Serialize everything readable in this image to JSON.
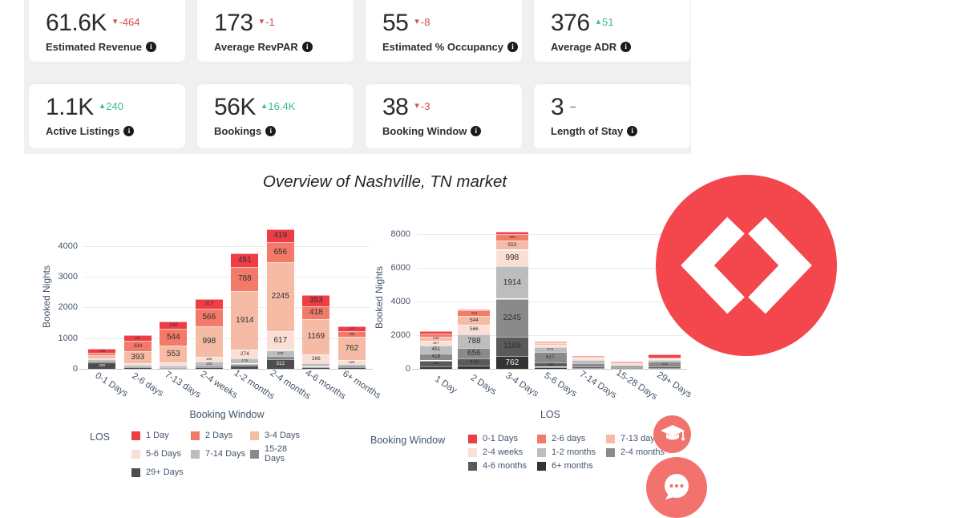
{
  "section_title": "Overview of Nashville, TN market",
  "kpi_cards": [
    {
      "value": "61.6K",
      "delta": "-464",
      "direction": "down",
      "label": "Estimated Revenue"
    },
    {
      "value": "173",
      "delta": "-1",
      "direction": "down",
      "label": "Average RevPAR"
    },
    {
      "value": "55",
      "delta": "-8",
      "direction": "down",
      "label": "Estimated % Occupancy"
    },
    {
      "value": "376",
      "delta": "51",
      "direction": "up",
      "label": "Average ADR"
    },
    {
      "value": "1.1K",
      "delta": "240",
      "direction": "up",
      "label": "Active Listings"
    },
    {
      "value": "56K",
      "delta": "16.4K",
      "direction": "up",
      "label": "Bookings"
    },
    {
      "value": "38",
      "delta": "-3",
      "direction": "down",
      "label": "Booking Window"
    },
    {
      "value": "3",
      "delta": "–",
      "direction": "flat",
      "label": "Length of Stay"
    }
  ],
  "colors": {
    "up": "#3cb896",
    "down": "#d0504b",
    "flat": "#444444",
    "tick_text": "#44546b",
    "grid": "#ebebeb",
    "logo_red": "#f4464d",
    "fab_coral": "#f2736d"
  },
  "chart_data": [
    {
      "type": "bar",
      "stacked": true,
      "xlabel": "Booking Window",
      "ylabel": "Booked Nights",
      "legend_title": "LOS",
      "legend_position": "bottom",
      "grid": true,
      "categories": [
        "0-1 Days",
        "2-6 days",
        "7-13 days",
        "2-4 weeks",
        "1-2 months",
        "2-4 months",
        "4-6 months",
        "6+ months"
      ],
      "yticks": [
        0,
        1000,
        2000,
        3000,
        4000
      ],
      "ylim": [
        0,
        4650
      ],
      "series": [
        {
          "name": "1 Day",
          "color": "#ee3d46",
          "values": [
            136,
            187,
            240,
            317,
            451,
            419,
            353,
            147
          ]
        },
        {
          "name": "2 Days",
          "color": "#f37a68",
          "values": [
            60,
            334,
            544,
            566,
            788,
            656,
            418,
            184
          ]
        },
        {
          "name": "3-4 Days",
          "color": "#f6bba5",
          "values": [
            110,
            393,
            553,
            998,
            1914,
            2245,
            1169,
            762
          ]
        },
        {
          "name": "5-6 Days",
          "color": "#fbdfd6",
          "values": [
            30,
            60,
            95,
            160,
            274,
            617,
            266,
            120
          ]
        },
        {
          "name": "7-14 Days",
          "color": "#bdbdbd",
          "values": [
            45,
            45,
            55,
            120,
            175,
            203,
            85,
            55
          ]
        },
        {
          "name": "15-28 Days",
          "color": "#8a8a8a",
          "values": [
            70,
            30,
            25,
            55,
            75,
            100,
            45,
            40
          ]
        },
        {
          "name": "29+ Days",
          "color": "#4d4d4d",
          "values": [
            200,
            45,
            35,
            60,
            95,
            312,
            65,
            65
          ]
        }
      ],
      "stack_order": "last-series-at-bottom"
    },
    {
      "type": "bar",
      "stacked": true,
      "xlabel": "LOS",
      "ylabel": "Booked Nights",
      "legend_title": "Booking Window",
      "legend_position": "bottom",
      "grid": true,
      "categories": [
        "1 Day",
        "2 Days",
        "3-4 Days",
        "5-6 Days",
        "7-14 Days",
        "15-28 Days",
        "29+ Days"
      ],
      "yticks": [
        0,
        2000,
        4000,
        6000,
        8000
      ],
      "ylim": [
        0,
        8400
      ],
      "series": [
        {
          "name": "0-1 Days",
          "color": "#ee3d46",
          "values": [
            136,
            60,
            110,
            30,
            45,
            70,
            200
          ]
        },
        {
          "name": "2-6 days",
          "color": "#f37a68",
          "values": [
            187,
            334,
            393,
            60,
            45,
            30,
            45
          ]
        },
        {
          "name": "7-13 days",
          "color": "#f6bba5",
          "values": [
            240,
            544,
            553,
            95,
            55,
            25,
            35
          ]
        },
        {
          "name": "2-4 weeks",
          "color": "#fbdfd6",
          "values": [
            317,
            566,
            998,
            160,
            120,
            55,
            60
          ]
        },
        {
          "name": "1-2 months",
          "color": "#bdbdbd",
          "values": [
            451,
            788,
            1914,
            274,
            175,
            75,
            95
          ]
        },
        {
          "name": "2-4 months",
          "color": "#8a8a8a",
          "values": [
            419,
            656,
            2245,
            617,
            203,
            100,
            312
          ]
        },
        {
          "name": "4-6 months",
          "color": "#5a5a5a",
          "values": [
            353,
            418,
            1169,
            266,
            85,
            45,
            65
          ]
        },
        {
          "name": "6+ months",
          "color": "#333333",
          "values": [
            147,
            184,
            762,
            120,
            55,
            40,
            65
          ]
        }
      ],
      "stack_order": "last-series-at-bottom"
    }
  ]
}
